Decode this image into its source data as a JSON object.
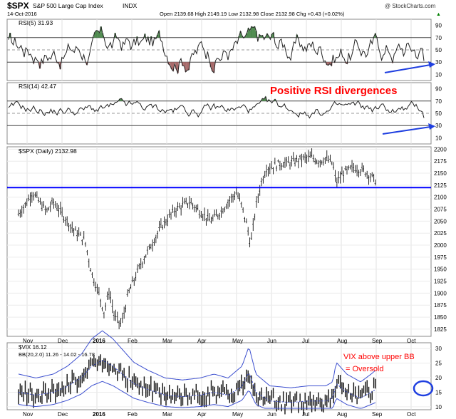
{
  "header": {
    "symbol": "$SPX",
    "name": "S&P 500 Large Cap Index",
    "exchange": "INDX",
    "date": "14-Oct-2016",
    "ohlc": "Open 2139.68  High 2149.19  Low 2132.98  Close 2132.98  Chg +0.43 (+0.02%)",
    "watermark": "@ StockCharts.com",
    "chg_arrow": "▲"
  },
  "colors": {
    "price_line": "#0000ff",
    "annotation": "#ff0000",
    "arrow": "#1f3fe0",
    "overbought_fill": "#4e8a4e",
    "oversold_fill": "#a86a6a",
    "grid": "#d8d8d8",
    "bb_band": "#3c4fcf"
  },
  "annotations": {
    "rsi_divergence": "Positive RSI divergences",
    "vix_line1": "VIX above upper BB",
    "vix_line2": "= Oversold"
  },
  "x_months": [
    "Nov",
    "Dec",
    "2016",
    "Feb",
    "Mar",
    "Apr",
    "May",
    "Jun",
    "Jul",
    "Aug",
    "Sep",
    "Oct"
  ],
  "chart_data": [
    {
      "type": "line",
      "title": "RSI(5) 31.93",
      "ylim": [
        0,
        100
      ],
      "y_ticks": [
        10,
        30,
        50,
        70,
        90
      ],
      "reference_lines": [
        30,
        50,
        70
      ],
      "series": [
        {
          "name": "RSI(5)",
          "last": 31.93
        }
      ]
    },
    {
      "type": "line",
      "title": "RSI(14) 42.47",
      "ylim": [
        0,
        100
      ],
      "y_ticks": [
        10,
        30,
        50,
        70,
        90
      ],
      "reference_lines": [
        30,
        50,
        70
      ],
      "series": [
        {
          "name": "RSI(14)",
          "last": 42.47
        }
      ]
    },
    {
      "type": "bar",
      "title": "$SPX (Daily) 2132.98",
      "ylim": [
        1810,
        2205
      ],
      "y_ticks": [
        1825,
        1850,
        1875,
        1900,
        1925,
        1950,
        1975,
        2000,
        2025,
        2050,
        2075,
        2100,
        2125,
        2150,
        2175,
        2200
      ],
      "y_tick_labels": [
        "1825",
        "1850",
        "1875",
        "1900",
        "1925",
        "1950",
        "1975",
        "2000",
        "2025",
        "2050",
        "2075",
        "2100",
        "2125",
        "2150",
        "2175",
        "2200"
      ],
      "support_line": 2120,
      "anchor_points": [
        {
          "m": 0,
          "v": 2065
        },
        {
          "m": 0.2,
          "v": 2085
        },
        {
          "m": 0.4,
          "v": 2110
        },
        {
          "m": 0.6,
          "v": 2090
        },
        {
          "m": 0.8,
          "v": 2070
        },
        {
          "m": 1.0,
          "v": 2090
        },
        {
          "m": 1.3,
          "v": 2060
        },
        {
          "m": 1.6,
          "v": 2030
        },
        {
          "m": 1.9,
          "v": 2010
        },
        {
          "m": 2.1,
          "v": 1940
        },
        {
          "m": 2.3,
          "v": 1900
        },
        {
          "m": 2.45,
          "v": 1860
        },
        {
          "m": 2.6,
          "v": 1905
        },
        {
          "m": 2.75,
          "v": 1850
        },
        {
          "m": 2.95,
          "v": 1835
        },
        {
          "m": 3.15,
          "v": 1900
        },
        {
          "m": 3.5,
          "v": 1960
        },
        {
          "m": 3.8,
          "v": 2000
        },
        {
          "m": 4.1,
          "v": 2040
        },
        {
          "m": 4.5,
          "v": 2075
        },
        {
          "m": 4.9,
          "v": 2090
        },
        {
          "m": 5.2,
          "v": 2070
        },
        {
          "m": 5.5,
          "v": 2050
        },
        {
          "m": 5.8,
          "v": 2070
        },
        {
          "m": 6.0,
          "v": 2090
        },
        {
          "m": 6.25,
          "v": 2110
        },
        {
          "m": 6.4,
          "v": 2080
        },
        {
          "m": 6.55,
          "v": 2040
        },
        {
          "m": 6.65,
          "v": 2000
        },
        {
          "m": 6.8,
          "v": 2080
        },
        {
          "m": 6.95,
          "v": 2130
        },
        {
          "m": 7.1,
          "v": 2160
        },
        {
          "m": 7.5,
          "v": 2170
        },
        {
          "m": 7.8,
          "v": 2172
        },
        {
          "m": 8.1,
          "v": 2180
        },
        {
          "m": 8.4,
          "v": 2183
        },
        {
          "m": 8.6,
          "v": 2175
        },
        {
          "m": 8.8,
          "v": 2180
        },
        {
          "m": 9.0,
          "v": 2170
        },
        {
          "m": 9.1,
          "v": 2130
        },
        {
          "m": 9.3,
          "v": 2150
        },
        {
          "m": 9.6,
          "v": 2162
        },
        {
          "m": 9.9,
          "v": 2155
        },
        {
          "m": 10.15,
          "v": 2140
        },
        {
          "m": 10.25,
          "v": 2133
        }
      ]
    },
    {
      "type": "bar",
      "title": "$VIX 16.12",
      "subtitle": "BB(20,2.0) 11.26 - 14.02 - 16.78",
      "ylim": [
        9,
        32
      ],
      "y_ticks": [
        10,
        15,
        20,
        25,
        30
      ],
      "anchor_points": [
        {
          "m": 0,
          "v": 15
        },
        {
          "m": 0.5,
          "v": 14
        },
        {
          "m": 1.0,
          "v": 15
        },
        {
          "m": 1.4,
          "v": 17
        },
        {
          "m": 1.8,
          "v": 20
        },
        {
          "m": 2.1,
          "v": 24
        },
        {
          "m": 2.4,
          "v": 26
        },
        {
          "m": 2.7,
          "v": 24
        },
        {
          "m": 3.0,
          "v": 21
        },
        {
          "m": 3.3,
          "v": 18
        },
        {
          "m": 3.7,
          "v": 16
        },
        {
          "m": 4.2,
          "v": 14
        },
        {
          "m": 4.7,
          "v": 13.5
        },
        {
          "m": 5.2,
          "v": 14
        },
        {
          "m": 5.6,
          "v": 15
        },
        {
          "m": 6.0,
          "v": 14
        },
        {
          "m": 6.4,
          "v": 17
        },
        {
          "m": 6.6,
          "v": 22
        },
        {
          "m": 6.8,
          "v": 15
        },
        {
          "m": 7.2,
          "v": 12
        },
        {
          "m": 7.8,
          "v": 11.5
        },
        {
          "m": 8.3,
          "v": 12
        },
        {
          "m": 8.8,
          "v": 12
        },
        {
          "m": 9.0,
          "v": 13
        },
        {
          "m": 9.1,
          "v": 18
        },
        {
          "m": 9.4,
          "v": 15
        },
        {
          "m": 9.8,
          "v": 13
        },
        {
          "m": 10.1,
          "v": 15
        },
        {
          "m": 10.25,
          "v": 16.12
        }
      ]
    }
  ]
}
